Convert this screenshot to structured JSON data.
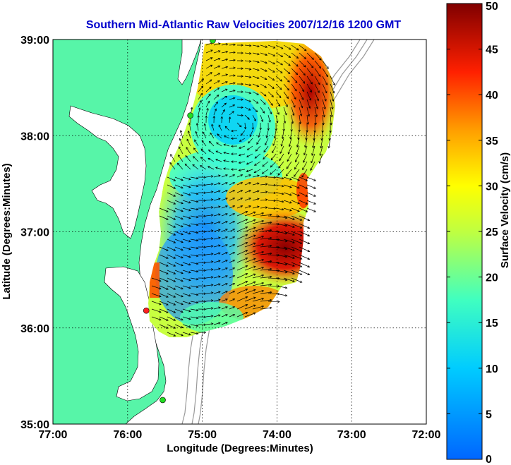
{
  "chart_data": {
    "type": "heatmap",
    "title": "Southern Mid-Atlantic Raw Velocities 2007/12/16 1200 GMT",
    "xlabel": "Longitude (Degrees:Minutes)",
    "ylabel": "Latitude (Degrees:Minutes)",
    "colorbar_label": "Surface Velocity (cm/s)",
    "x_ticks": [
      "77:00",
      "76:00",
      "75:00",
      "74:00",
      "73:00",
      "72:00"
    ],
    "y_ticks": [
      "39:00",
      "38:00",
      "37:00",
      "36:00",
      "35:00"
    ],
    "colorbar_ticks": [
      "0",
      "5",
      "10",
      "15",
      "20",
      "25",
      "30",
      "35",
      "40",
      "45",
      "50"
    ],
    "xlim": [
      -77,
      -72
    ],
    "ylim": [
      35,
      39
    ],
    "clim": [
      0,
      50
    ],
    "grid": true,
    "colormap": "jet",
    "land_color": "#57f5a8",
    "stations": [
      {
        "lon": -74.86,
        "lat": 38.99,
        "color": "#22dd22"
      },
      {
        "lon": -75.16,
        "lat": 38.21,
        "color": "#22dd22"
      },
      {
        "lon": -75.75,
        "lat": 36.18,
        "color": "#ff2020"
      },
      {
        "lon": -75.53,
        "lat": 35.25,
        "color": "#22dd22"
      }
    ]
  }
}
